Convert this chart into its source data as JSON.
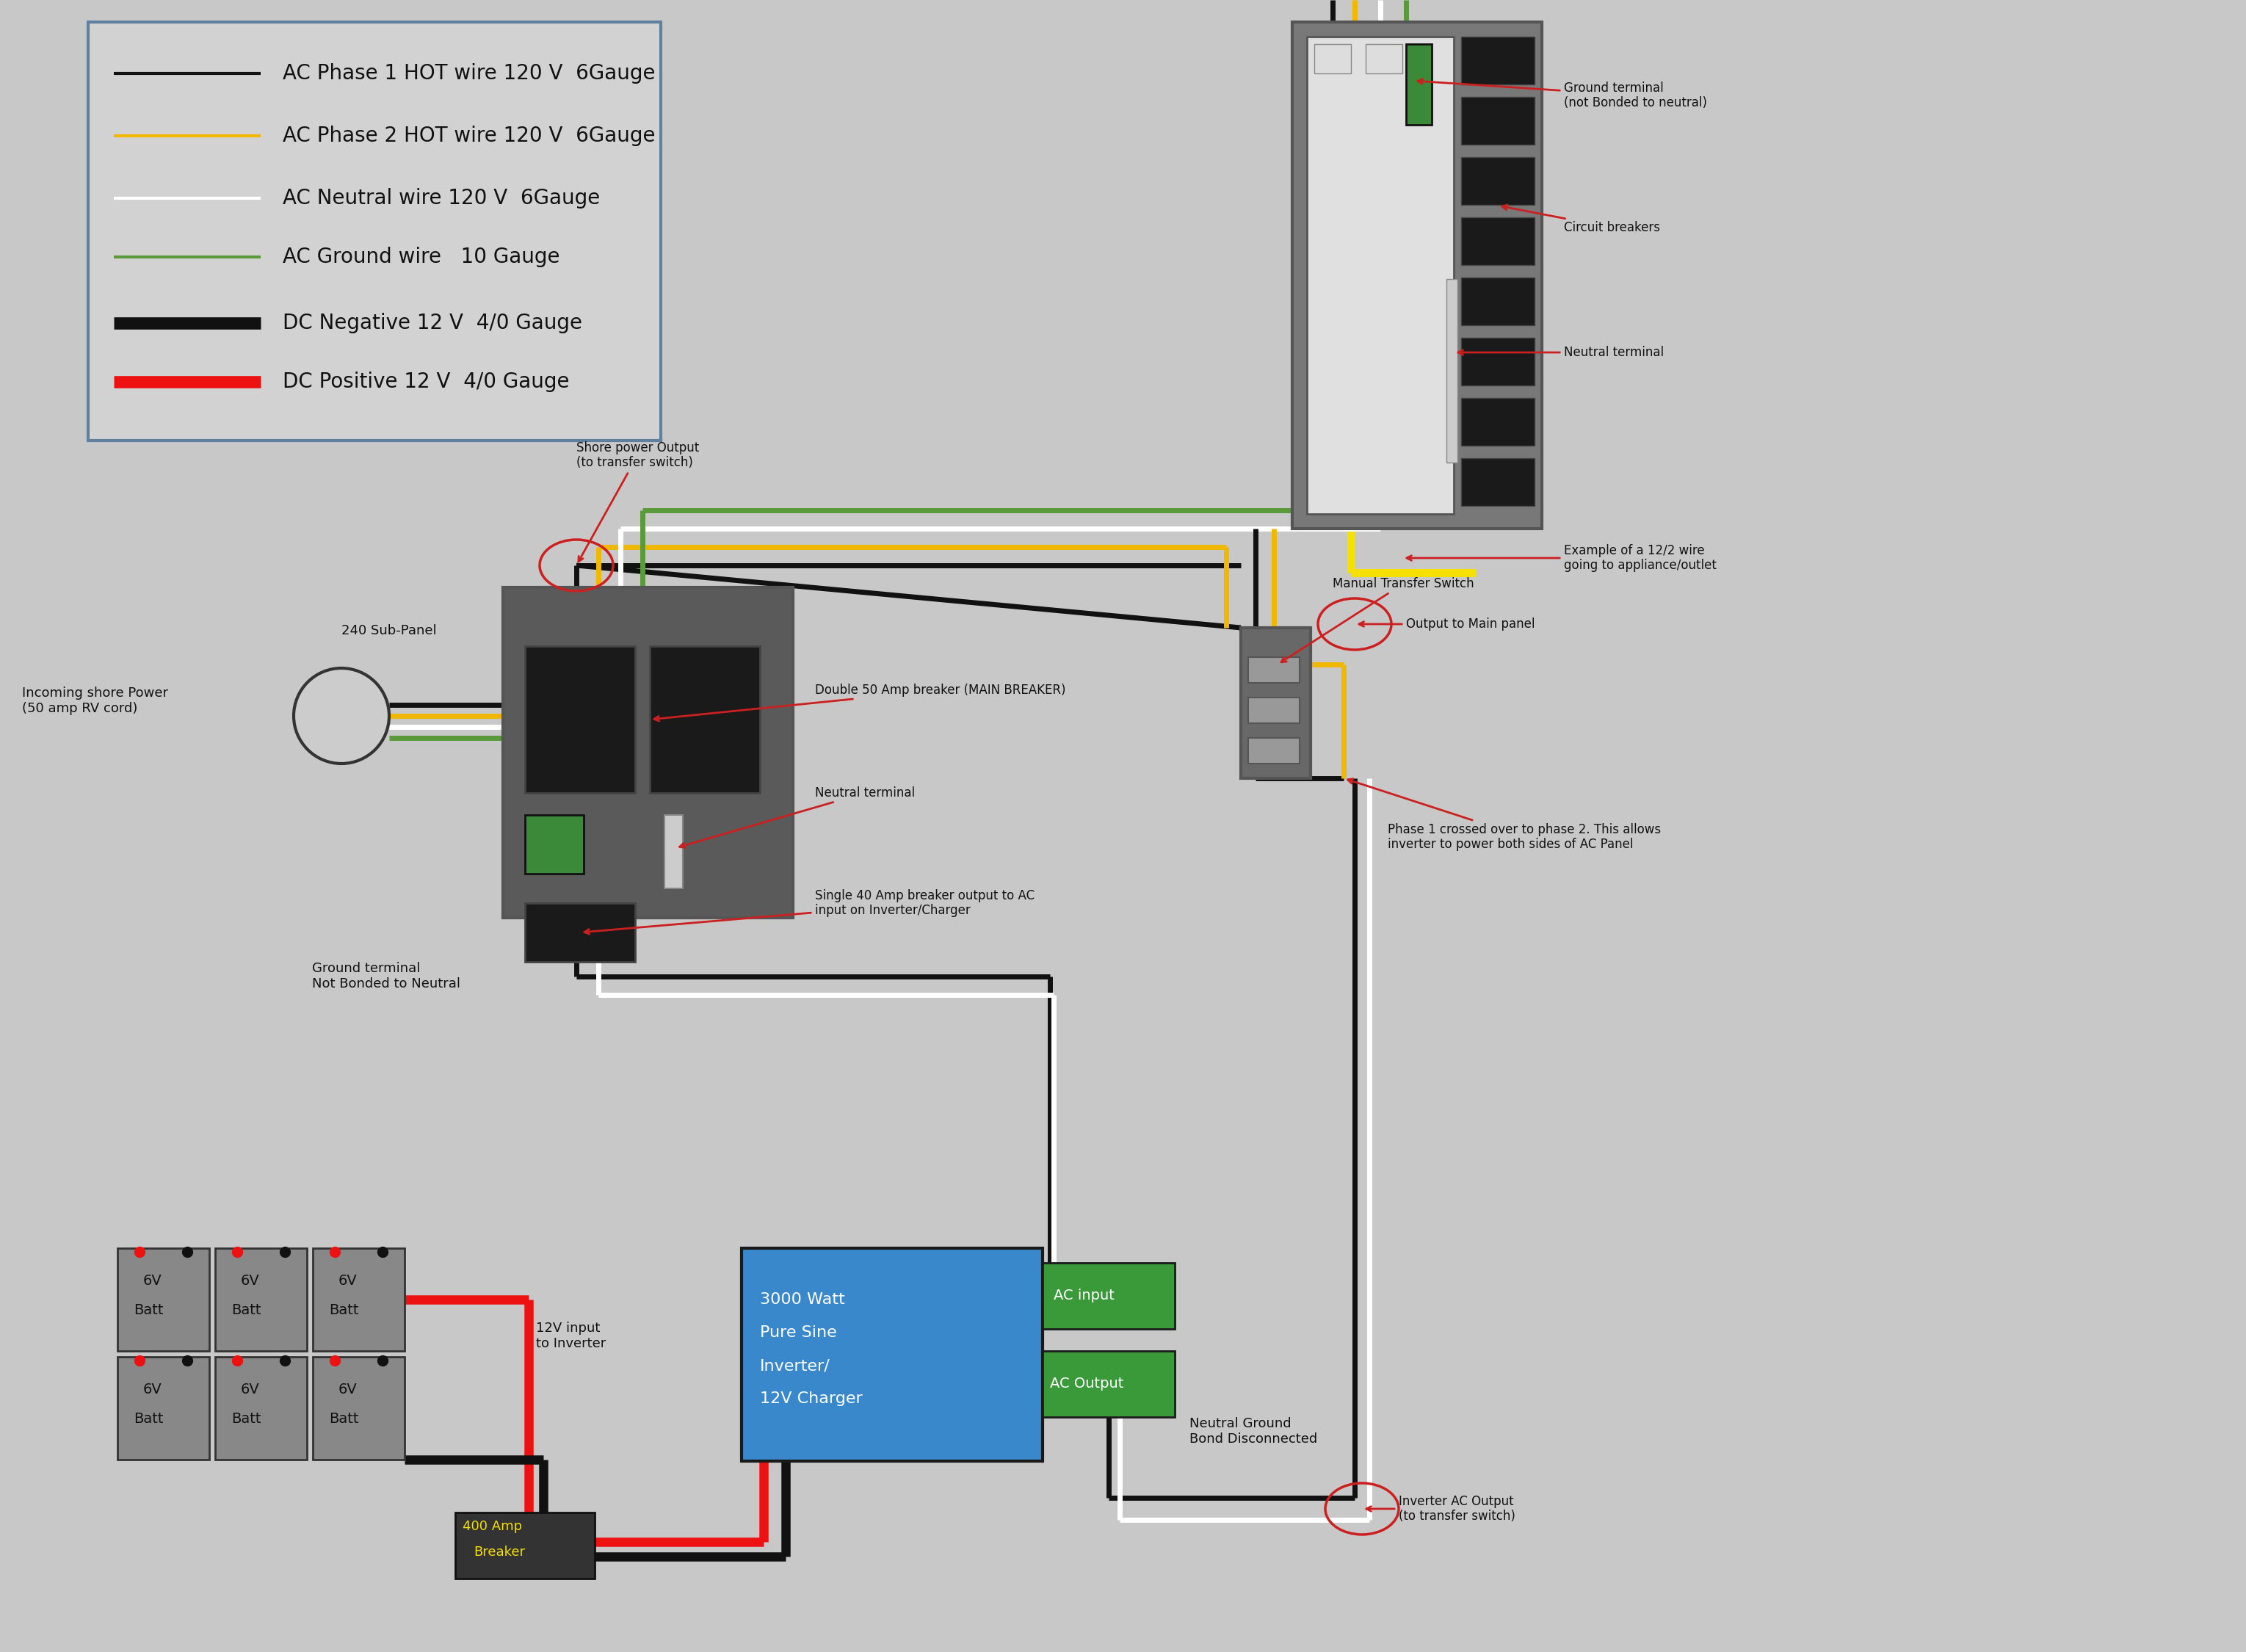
{
  "bg_color": "#c8c8c8",
  "legend_bg": "#d2d2d2",
  "legend_border": "#6080a0",
  "legend_items": [
    {
      "color": "#111111",
      "lw": 3,
      "label": "AC Phase 1 HOT wire 120 V  6Gauge",
      "thick": false
    },
    {
      "color": "#f0b800",
      "lw": 3,
      "label": "AC Phase 2 HOT wire 120 V  6Gauge",
      "thick": false
    },
    {
      "color": "#ffffff",
      "lw": 3,
      "label": "AC Neutral wire 120 V  6Gauge",
      "thick": false
    },
    {
      "color": "#5a9a3a",
      "lw": 3,
      "label": "AC Ground wire   10 Gauge",
      "thick": false
    },
    {
      "color": "#111111",
      "lw": 6,
      "label": "DC Negative 12 V  4/0 Gauge",
      "thick": true
    },
    {
      "color": "#ee1111",
      "lw": 6,
      "label": "DC Positive 12 V  4/0 Gauge",
      "thick": true
    }
  ],
  "colors": {
    "black": "#111111",
    "yellow": "#f0b800",
    "white": "#ffffff",
    "green": "#5a9a3a",
    "red": "#ee1111",
    "panel_gray": "#787878",
    "dark_gray": "#555555",
    "med_gray": "#686868",
    "light_gray": "#e0e0e0",
    "breaker_black": "#1a1a1a",
    "green_term": "#3a8a3a",
    "blue_inv": "#3a88cc",
    "bright_yellow": "#f5e000",
    "annot_red": "#cc2020"
  }
}
